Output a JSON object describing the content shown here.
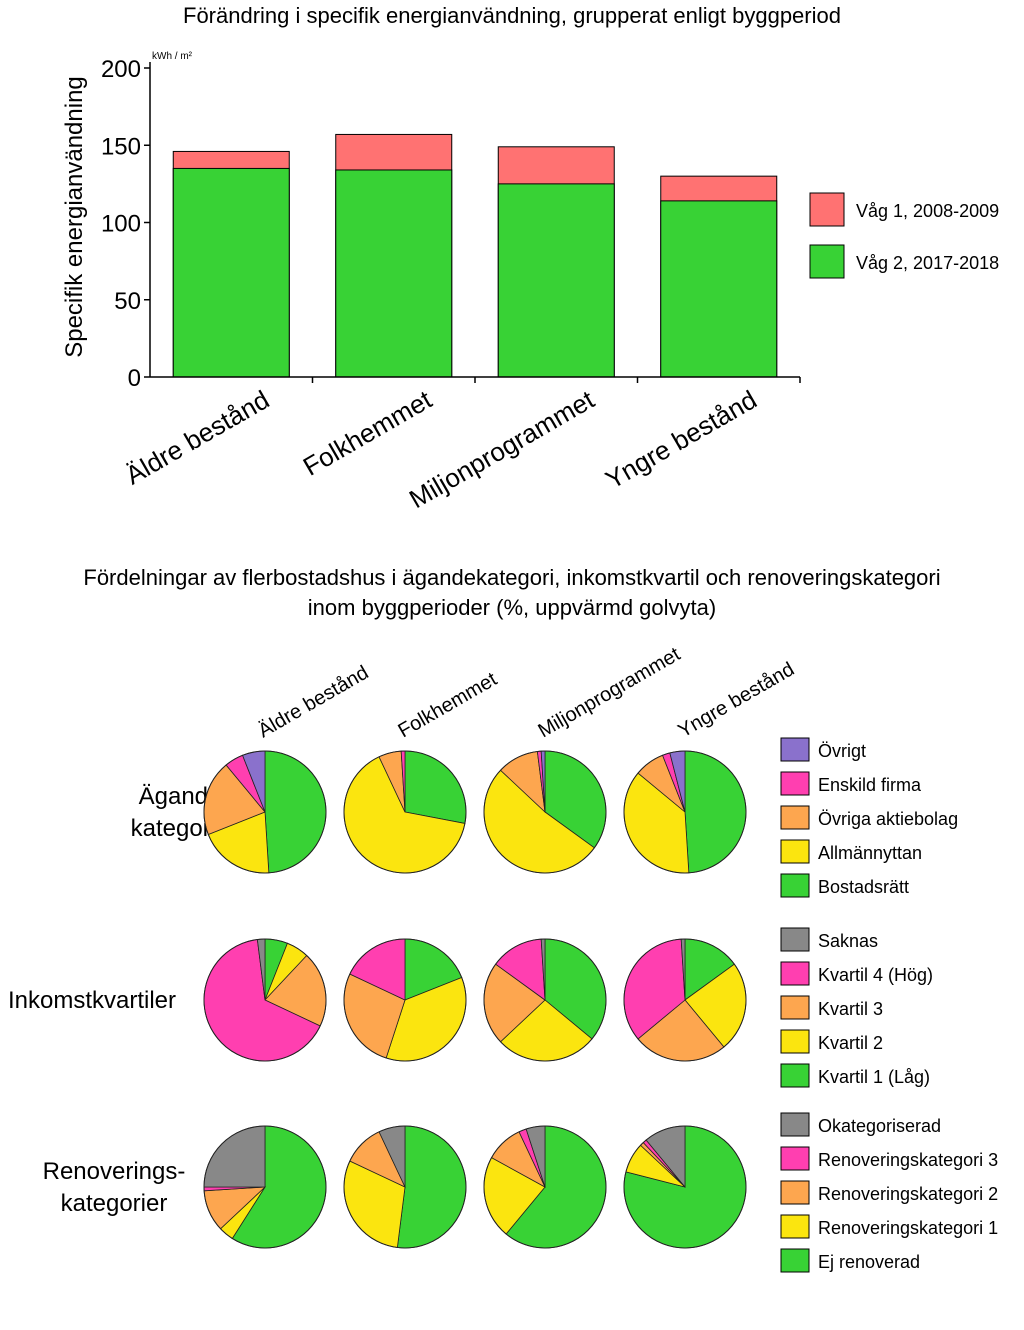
{
  "colors": {
    "green": "#38d235",
    "red": "#ff7272",
    "purple": "#8a71cc",
    "magenta": "#ff3fb0",
    "orange": "#fda64f",
    "yellow": "#fbe50f",
    "gray": "#888888"
  },
  "chart_data": [
    {
      "type": "bar",
      "title": "Förändring i specifik energianvändning, grupperat enligt byggperiod",
      "ylabel": "Specifik energianvändning",
      "yunit": "kWh / m²",
      "ylim": [
        0,
        200
      ],
      "yticks": [
        0,
        50,
        100,
        150,
        200
      ],
      "categories": [
        "Äldre bestånd",
        "Folkhemmet",
        "Miljonprogrammet",
        "Yngre bestånd"
      ],
      "series": [
        {
          "name": "Våg 1, 2008-2009",
          "values": [
            146,
            157,
            149,
            130
          ],
          "color": "#ff7272"
        },
        {
          "name": "Våg 2, 2017-2018",
          "values": [
            135,
            134,
            125,
            114
          ],
          "color": "#38d235"
        }
      ],
      "legend_position": "right"
    },
    {
      "type": "pie",
      "title": "Fördelningar av flerbostadshus i ägandekategori, inkomstkvartil och renoveringskategori inom byggperioder (%, uppvärmd golvyta)",
      "columns": [
        "Äldre bestånd",
        "Folkhemmet",
        "Miljonprogrammet",
        "Yngre bestånd"
      ],
      "rows": [
        {
          "name": "Ägande-\nkategorier",
          "label_lines": [
            "Ägande-",
            "kategorier"
          ],
          "categories": [
            "Bostadsrätt",
            "Allmännyttan",
            "Övriga aktiebolag",
            "Enskild firma",
            "Övrigt"
          ],
          "legend": [
            "Övrigt",
            "Enskild firma",
            "Övriga aktiebolag",
            "Allmännyttan",
            "Bostadsrätt"
          ],
          "values": [
            [
              49,
              20,
              20,
              5,
              6
            ],
            [
              28,
              65,
              6,
              1,
              0
            ],
            [
              35,
              52,
              11,
              1,
              1
            ],
            [
              49,
              37,
              8,
              2,
              4
            ]
          ]
        },
        {
          "name": "Inkomstkvartiler",
          "label_lines": [
            "Inkomstkvartiler"
          ],
          "categories": [
            "Kvartil 1 (Låg)",
            "Kvartil 2",
            "Kvartil 3",
            "Kvartil 4 (Hög)",
            "Saknas"
          ],
          "legend": [
            "Saknas",
            "Kvartil 4 (Hög)",
            "Kvartil 3",
            "Kvartil 2",
            "Kvartil 1 (Låg)"
          ],
          "values": [
            [
              6,
              6,
              20,
              66,
              2
            ],
            [
              19,
              36,
              27,
              18,
              0
            ],
            [
              36,
              27,
              22,
              14,
              1
            ],
            [
              15,
              24,
              25,
              35,
              1
            ]
          ]
        },
        {
          "name": "Renoverings-\nkategorier",
          "label_lines": [
            "Renoverings-",
            "kategorier"
          ],
          "categories": [
            "Ej renoverad",
            "Renoveringskategori 1",
            "Renoveringskategori 2",
            "Renoveringskategori 3",
            "Okategoriserad"
          ],
          "legend": [
            "Okategoriserad",
            "Renoveringskategori 3",
            "Renoveringskategori 2",
            "Renoveringskategori 1",
            "Ej renoverad"
          ],
          "values": [
            [
              59,
              4,
              11,
              1,
              25
            ],
            [
              52,
              30,
              11,
              0,
              7
            ],
            [
              61,
              22,
              10,
              2,
              5
            ],
            [
              79,
              8,
              1,
              1,
              11
            ]
          ]
        }
      ]
    }
  ]
}
